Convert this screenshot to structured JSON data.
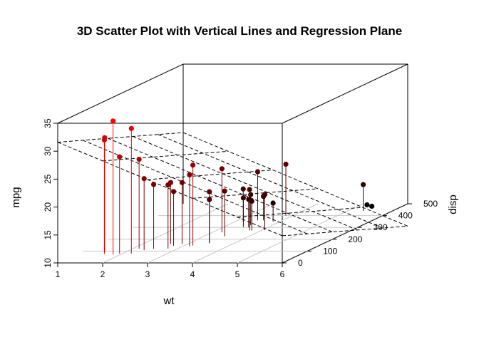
{
  "chart_data": {
    "type": "scatter",
    "title": "3D Scatter Plot with Vertical Lines and Regression Plane",
    "xlabel": "wt",
    "ylabel": "disp",
    "zlabel": "mpg",
    "xlim": [
      1,
      6
    ],
    "ylim": [
      0,
      500
    ],
    "zlim": [
      10,
      35
    ],
    "x_ticks": [
      "1",
      "2",
      "3",
      "4",
      "5",
      "6"
    ],
    "y_ticks": [
      "0",
      "100",
      "200",
      "300",
      "400",
      "500"
    ],
    "z_ticks": [
      "10",
      "15",
      "20",
      "25",
      "30",
      "35"
    ],
    "color_low": "#000000",
    "color_high": "#ff0000",
    "vertical_lines": true,
    "regression_plane": true,
    "points": [
      {
        "wt": 2.62,
        "disp": 160,
        "mpg": 21.0
      },
      {
        "wt": 2.875,
        "disp": 160,
        "mpg": 21.0
      },
      {
        "wt": 2.32,
        "disp": 108,
        "mpg": 22.8
      },
      {
        "wt": 3.215,
        "disp": 258,
        "mpg": 21.4
      },
      {
        "wt": 3.44,
        "disp": 360,
        "mpg": 18.7
      },
      {
        "wt": 3.46,
        "disp": 225,
        "mpg": 18.1
      },
      {
        "wt": 3.57,
        "disp": 360,
        "mpg": 14.3
      },
      {
        "wt": 3.19,
        "disp": 146.7,
        "mpg": 24.4
      },
      {
        "wt": 3.15,
        "disp": 140.8,
        "mpg": 22.8
      },
      {
        "wt": 3.44,
        "disp": 167.6,
        "mpg": 19.2
      },
      {
        "wt": 3.44,
        "disp": 167.6,
        "mpg": 17.8
      },
      {
        "wt": 4.07,
        "disp": 275.8,
        "mpg": 16.4
      },
      {
        "wt": 3.73,
        "disp": 275.8,
        "mpg": 17.3
      },
      {
        "wt": 3.78,
        "disp": 275.8,
        "mpg": 15.2
      },
      {
        "wt": 5.25,
        "disp": 472,
        "mpg": 10.4
      },
      {
        "wt": 5.424,
        "disp": 460,
        "mpg": 10.4
      },
      {
        "wt": 5.345,
        "disp": 440,
        "mpg": 14.7
      },
      {
        "wt": 2.2,
        "disp": 78.7,
        "mpg": 32.4
      },
      {
        "wt": 1.615,
        "disp": 75.7,
        "mpg": 30.4
      },
      {
        "wt": 1.835,
        "disp": 71.1,
        "mpg": 33.9
      },
      {
        "wt": 2.465,
        "disp": 120.1,
        "mpg": 21.5
      },
      {
        "wt": 3.52,
        "disp": 318,
        "mpg": 15.5
      },
      {
        "wt": 3.435,
        "disp": 304,
        "mpg": 15.2
      },
      {
        "wt": 3.84,
        "disp": 350,
        "mpg": 13.3
      },
      {
        "wt": 3.845,
        "disp": 400,
        "mpg": 19.2
      },
      {
        "wt": 1.935,
        "disp": 79,
        "mpg": 27.3
      },
      {
        "wt": 2.14,
        "disp": 120.3,
        "mpg": 26.0
      },
      {
        "wt": 1.513,
        "disp": 95.1,
        "mpg": 30.4
      },
      {
        "wt": 3.17,
        "disp": 351,
        "mpg": 15.8
      },
      {
        "wt": 2.77,
        "disp": 145,
        "mpg": 19.7
      },
      {
        "wt": 3.57,
        "disp": 301,
        "mpg": 15.0
      },
      {
        "wt": 2.78,
        "disp": 121,
        "mpg": 21.4
      }
    ]
  }
}
